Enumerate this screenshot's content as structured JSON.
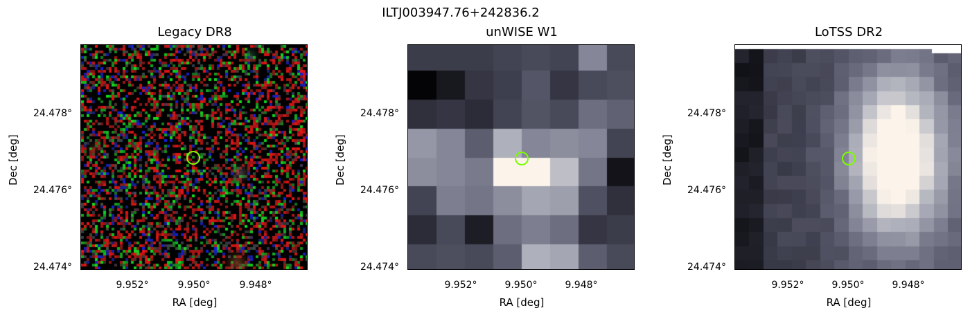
{
  "figure": {
    "title": "ILTJ003947.76+242836.2"
  },
  "panels": [
    {
      "title": "Legacy DR8",
      "xlabel": "RA [deg]",
      "ylabel": "Dec [deg]",
      "xticks": [
        "9.952°",
        "9.950°",
        "9.948°"
      ],
      "yticks": [
        "24.478°",
        "24.476°",
        "24.474°"
      ],
      "style": "rgb-noise",
      "marker_color": "#7CFC00"
    },
    {
      "title": "unWISE W1",
      "xlabel": "RA [deg]",
      "ylabel": "Dec [deg]",
      "xticks": [
        "9.952°",
        "9.950°",
        "9.948°"
      ],
      "yticks": [
        "24.478°",
        "24.476°",
        "24.474°"
      ],
      "style": "bone",
      "marker_color": "#7CFC00"
    },
    {
      "title": "LoTSS DR2",
      "xlabel": "RA [deg]",
      "ylabel": "Dec [deg]",
      "xticks": [
        "9.952°",
        "9.950°",
        "9.948°"
      ],
      "yticks": [
        "24.478°",
        "24.476°",
        "24.474°"
      ],
      "style": "bone",
      "marker_color": "#7CFC00"
    }
  ]
}
